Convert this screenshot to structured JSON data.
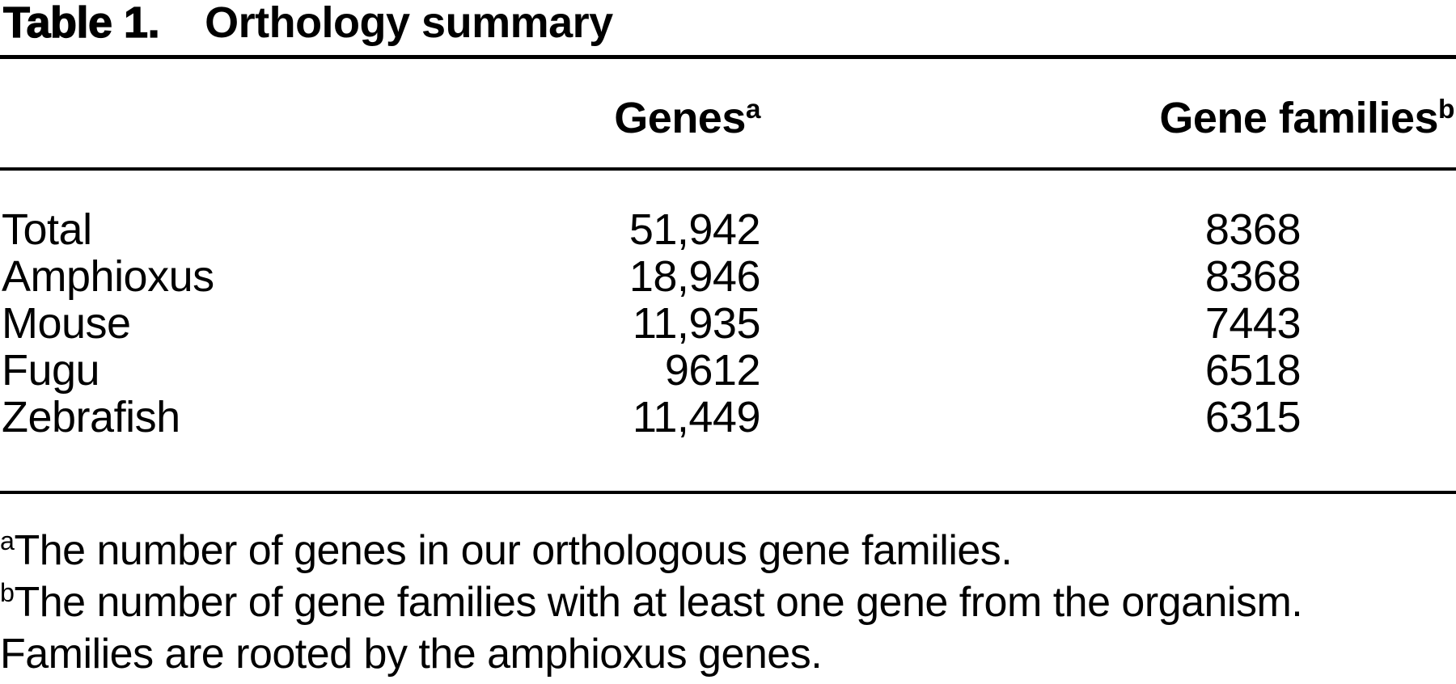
{
  "colors": {
    "text": "#000000",
    "background": "#ffffff",
    "rule": "#000000"
  },
  "table": {
    "title_label": "Table 1.",
    "title_text": "Orthology summary",
    "columns": [
      {
        "label": "",
        "sup": ""
      },
      {
        "label": "Genes",
        "sup": "a"
      },
      {
        "label": "Gene families",
        "sup": "b"
      }
    ],
    "rows": [
      {
        "label": "Total",
        "genes": "51,942",
        "gene_families": "8368"
      },
      {
        "label": "Amphioxus",
        "genes": "18,946",
        "gene_families": "8368"
      },
      {
        "label": "Mouse",
        "genes": "11,935",
        "gene_families": "7443"
      },
      {
        "label": "Fugu",
        "genes": "9612",
        "gene_families": "6518"
      },
      {
        "label": "Zebrafish",
        "genes": "11,449",
        "gene_families": "6315"
      }
    ],
    "footnotes": [
      {
        "marker": "a",
        "lines": [
          "The number of genes in our orthologous gene families."
        ]
      },
      {
        "marker": "b",
        "lines": [
          "The number of gene families with at least one gene from the organism.",
          "Families are rooted by the amphioxus genes."
        ]
      }
    ]
  }
}
